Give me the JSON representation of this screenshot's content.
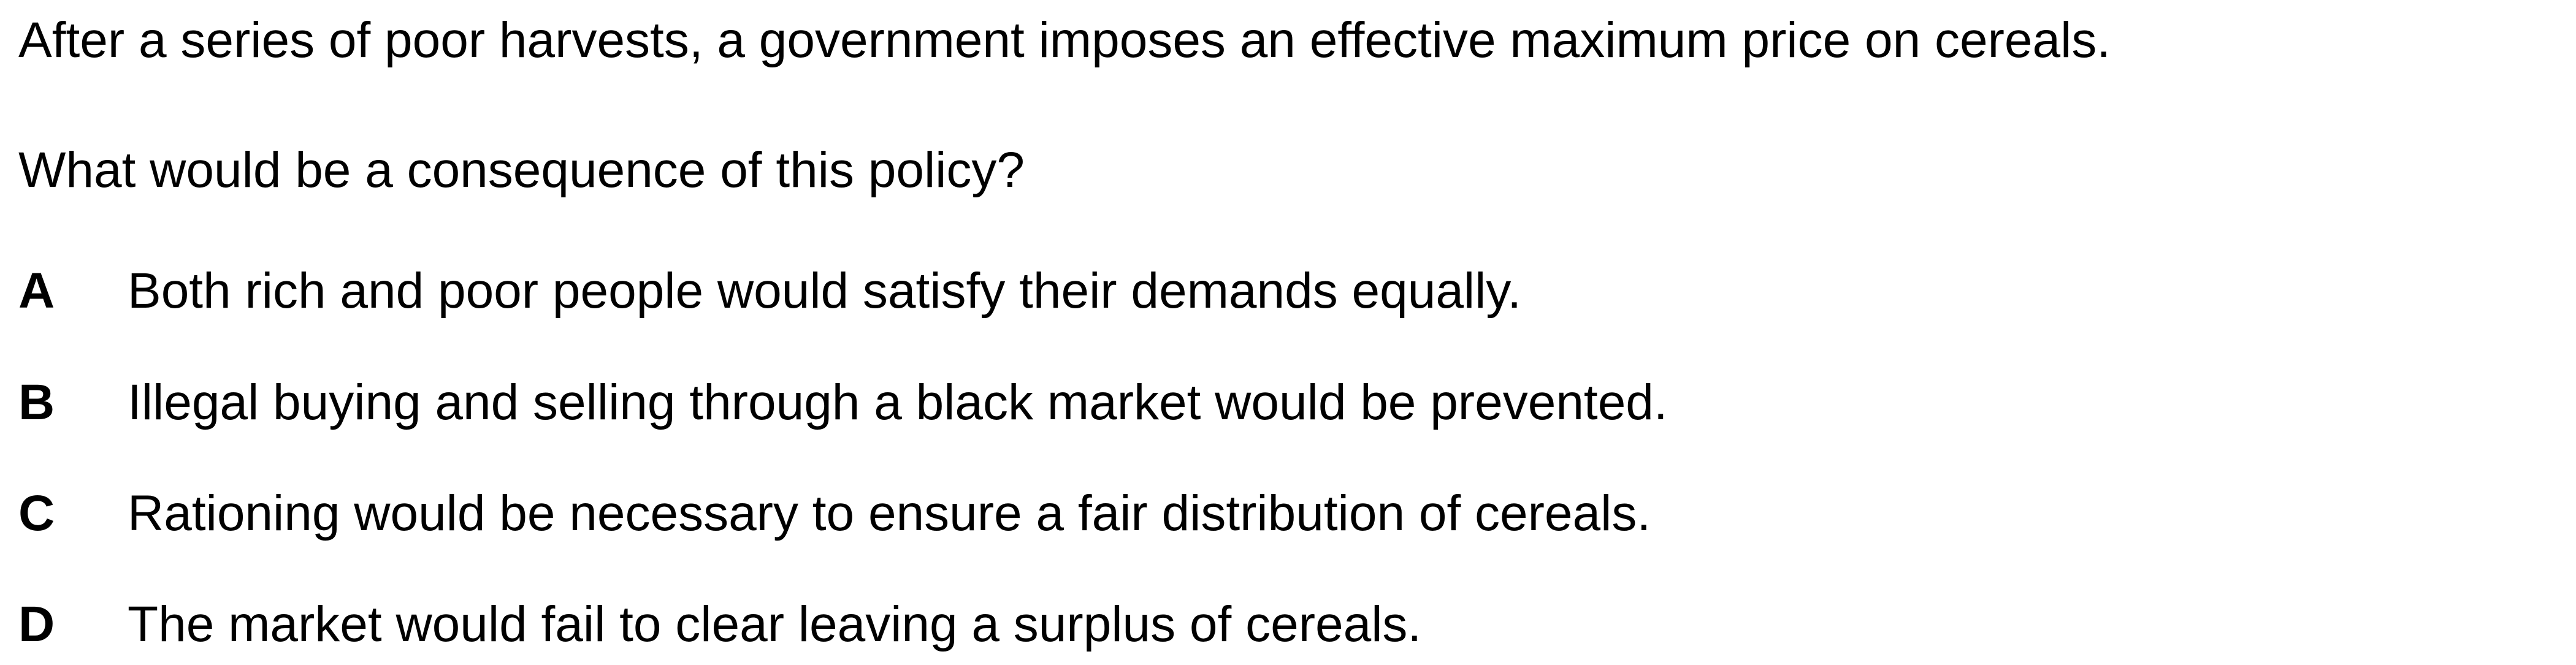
{
  "question": {
    "stem": "After a series of poor harvests, a government imposes an effective maximum price on cereals.",
    "prompt": "What would be a consequence of this policy?"
  },
  "options": [
    {
      "letter": "A",
      "text": "Both rich and poor people would satisfy their demands equally."
    },
    {
      "letter": "B",
      "text": "Illegal buying and selling through a black market would be prevented."
    },
    {
      "letter": "C",
      "text": "Rationing would be necessary to ensure a fair distribution of cereals."
    },
    {
      "letter": "D",
      "text": "The market would fail to clear leaving a surplus of cereals."
    }
  ]
}
